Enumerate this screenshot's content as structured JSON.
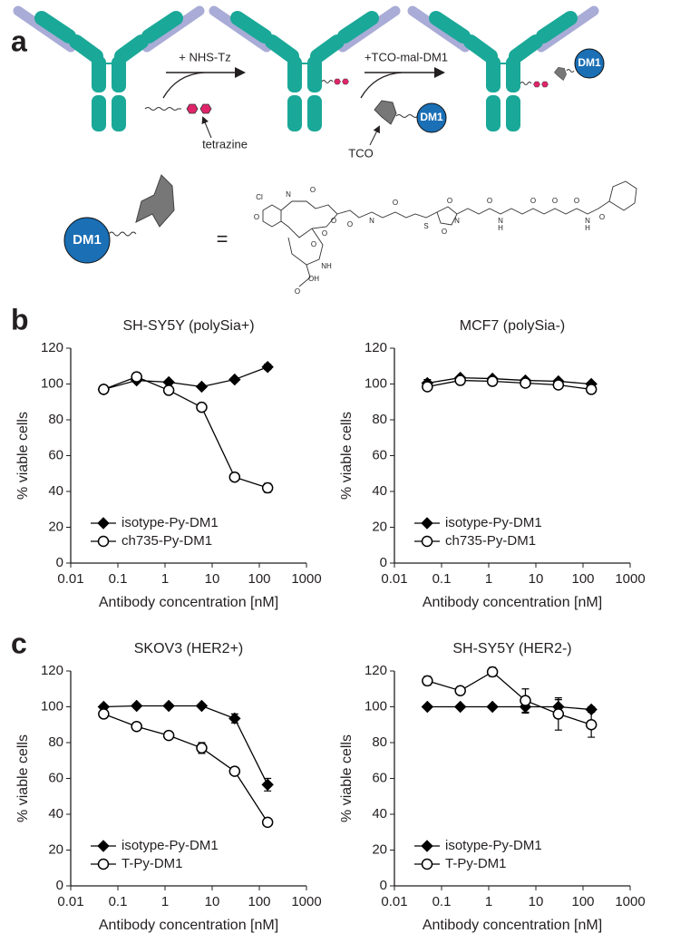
{
  "panel_labels": [
    "a",
    "b",
    "c"
  ],
  "scheme": {
    "step1_reagent": "+ NHS-Tz",
    "tetrazine_label": "tetrazine",
    "step2_reagent": "+TCO-mal-DM1",
    "tco_label": "TCO",
    "dm1_labels": [
      "DM1",
      "DM1",
      "DM1"
    ],
    "equals": "=",
    "structure_atoms": [
      "Cl",
      "N",
      "O",
      "O",
      "O",
      "O",
      "N",
      "O",
      "S",
      "N",
      "O",
      "O",
      "N",
      "H",
      "O",
      "O",
      "O",
      "N",
      "H",
      "O",
      "O",
      "O",
      "NH",
      "O",
      "OH",
      "O"
    ]
  },
  "chart_data": [
    {
      "type": "line",
      "title": "SH-SY5Y (polySia+)",
      "xlabel": "Antibody concentration [nM]",
      "ylabel": "% viable cells",
      "x": [
        0.05,
        0.25,
        1.2,
        6,
        30,
        150
      ],
      "xlim": [
        0.01,
        1000
      ],
      "xticks": [
        0.01,
        0.1,
        1,
        10,
        100,
        1000
      ],
      "log_x": true,
      "ylim": [
        0,
        120
      ],
      "yticks": [
        0,
        20,
        40,
        60,
        80,
        100,
        120
      ],
      "legend": "lower left",
      "series": [
        {
          "name": "isotype-Py-DM1",
          "color": "#000000",
          "marker": "diamond",
          "marker_fill": "#000000",
          "values": [
            97,
            102,
            101,
            98.5,
            102.5,
            109.5
          ],
          "errors": [
            0.5,
            1,
            1,
            1,
            0.5,
            1.5
          ]
        },
        {
          "name": "ch735-Py-DM1",
          "color": "#000000",
          "marker": "circle",
          "marker_fill": "#ffffff",
          "values": [
            97,
            104,
            96.5,
            87,
            48,
            42
          ],
          "errors": [
            1,
            1,
            1,
            0.5,
            1,
            2.5
          ]
        }
      ]
    },
    {
      "type": "line",
      "title": "MCF7 (polySia-)",
      "xlabel": "Antibody concentration [nM]",
      "ylabel": "% viable cells",
      "x": [
        0.05,
        0.25,
        1.2,
        6,
        30,
        150
      ],
      "xlim": [
        0.01,
        1000
      ],
      "xticks": [
        0.01,
        0.1,
        1,
        10,
        100,
        1000
      ],
      "log_x": true,
      "ylim": [
        0,
        120
      ],
      "yticks": [
        0,
        20,
        40,
        60,
        80,
        100,
        120
      ],
      "legend": "lower left",
      "series": [
        {
          "name": "isotype-Py-DM1",
          "color": "#000000",
          "marker": "diamond",
          "marker_fill": "#000000",
          "values": [
            100.5,
            103.5,
            103,
            102,
            101.5,
            100
          ],
          "errors": [
            2,
            1,
            1,
            1,
            1,
            1
          ]
        },
        {
          "name": "ch735-Py-DM1",
          "color": "#000000",
          "marker": "circle",
          "marker_fill": "#ffffff",
          "values": [
            98.5,
            102,
            101.5,
            100.5,
            99.5,
            97
          ],
          "errors": [
            1.5,
            1,
            1,
            1,
            1,
            1.5
          ]
        }
      ]
    },
    {
      "type": "line",
      "title": "SKOV3 (HER2+)",
      "xlabel": "Antibody concentration [nM]",
      "ylabel": "% viable cells",
      "x": [
        0.05,
        0.25,
        1.2,
        6,
        30,
        150
      ],
      "xlim": [
        0.01,
        1000
      ],
      "xticks": [
        0.01,
        0.1,
        1,
        10,
        100,
        1000
      ],
      "log_x": true,
      "ylim": [
        0,
        120
      ],
      "yticks": [
        0,
        20,
        40,
        60,
        80,
        100,
        120
      ],
      "legend": "lower left",
      "series": [
        {
          "name": "isotype-Py-DM1",
          "color": "#000000",
          "marker": "diamond",
          "marker_fill": "#000000",
          "values": [
            100,
            100.5,
            100.5,
            100.5,
            93.5,
            56.5
          ],
          "errors": [
            1,
            1,
            0.5,
            0.5,
            2.5,
            3.5
          ]
        },
        {
          "name": "T-Py-DM1",
          "color": "#000000",
          "marker": "circle",
          "marker_fill": "#ffffff",
          "values": [
            96,
            89,
            84,
            77,
            64,
            35.5
          ],
          "errors": [
            2,
            1,
            2,
            3,
            1.5,
            1.5
          ]
        }
      ]
    },
    {
      "type": "line",
      "title": "SH-SY5Y (HER2-)",
      "xlabel": "Antibody concentration [nM]",
      "ylabel": "% viable cells",
      "x": [
        0.05,
        0.25,
        1.2,
        6,
        30,
        150
      ],
      "xlim": [
        0.01,
        1000
      ],
      "xticks": [
        0.01,
        0.1,
        1,
        10,
        100,
        1000
      ],
      "log_x": true,
      "ylim": [
        0,
        120
      ],
      "yticks": [
        0,
        20,
        40,
        60,
        80,
        100,
        120
      ],
      "legend": "lower left",
      "series": [
        {
          "name": "isotype-Py-DM1",
          "color": "#000000",
          "marker": "diamond",
          "marker_fill": "#000000",
          "values": [
            100,
            100,
            100,
            100,
            100,
            98.5
          ],
          "errors": [
            0.5,
            0.5,
            0.5,
            3.5,
            4,
            1.5
          ]
        },
        {
          "name": "T-Py-DM1",
          "color": "#000000",
          "marker": "circle",
          "marker_fill": "#ffffff",
          "values": [
            114.5,
            109,
            119.5,
            103.5,
            96,
            90
          ],
          "errors": [
            2.5,
            1.5,
            2.5,
            6.5,
            9,
            7
          ]
        }
      ]
    }
  ]
}
